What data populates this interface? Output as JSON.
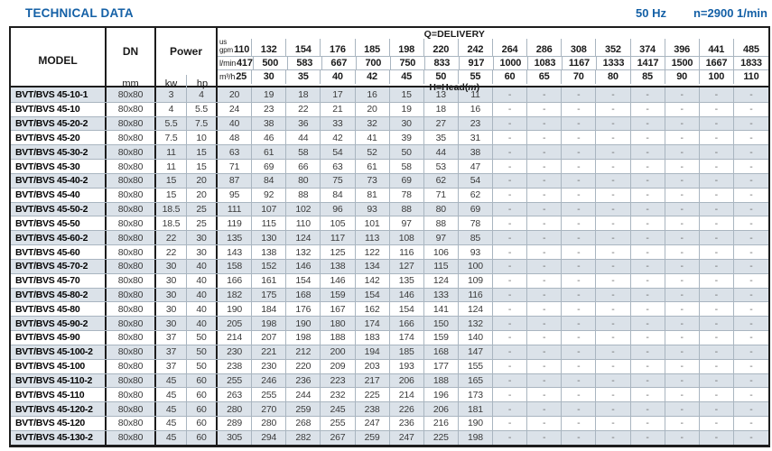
{
  "title": "TECHNICAL DATA",
  "top_right": {
    "frequency": "50 Hz",
    "speed": "n=2900 1/min"
  },
  "colors": {
    "accent": "#1460a6",
    "stripe": "#dbe2e9",
    "border": "#1d1d1d",
    "grid": "#a9b5c0"
  },
  "table": {
    "col_headers": {
      "model": "MODEL",
      "dn": "DN",
      "dn_unit": "mm",
      "power": "Power",
      "kw": "kw",
      "hp": "hp",
      "delivery_label": "Q=DELIVERY",
      "head_label_pre": "H=Head(",
      "head_label_m": "m",
      "head_label_post": ")",
      "unit_gpm_top": "us",
      "unit_gpm_bottom": "gpm",
      "unit_lmin": "l/min",
      "unit_m3h": "m³/h",
      "us_gpm": [
        "110",
        "132",
        "154",
        "176",
        "185",
        "198",
        "220",
        "242",
        "264",
        "286",
        "308",
        "352",
        "374",
        "396",
        "441",
        "485"
      ],
      "l_min": [
        "417",
        "500",
        "583",
        "667",
        "700",
        "750",
        "833",
        "917",
        "1000",
        "1083",
        "1167",
        "1333",
        "1417",
        "1500",
        "1667",
        "1833"
      ],
      "m3_h": [
        "25",
        "30",
        "35",
        "40",
        "42",
        "45",
        "50",
        "55",
        "60",
        "65",
        "70",
        "80",
        "85",
        "90",
        "100",
        "110"
      ]
    },
    "rows": [
      {
        "model": "BVT/BVS 45-10-1",
        "dn": "80x80",
        "kw": "3",
        "hp": "4",
        "head": [
          "20",
          "19",
          "18",
          "17",
          "16",
          "15",
          "13",
          "11",
          "-",
          "-",
          "-",
          "-",
          "-",
          "-",
          "-",
          "-"
        ]
      },
      {
        "model": "BVT/BVS 45-10",
        "dn": "80x80",
        "kw": "4",
        "hp": "5.5",
        "head": [
          "24",
          "23",
          "22",
          "21",
          "20",
          "19",
          "18",
          "16",
          "-",
          "-",
          "-",
          "-",
          "-",
          "-",
          "-",
          "-"
        ]
      },
      {
        "model": "BVT/BVS 45-20-2",
        "dn": "80x80",
        "kw": "5.5",
        "hp": "7.5",
        "head": [
          "40",
          "38",
          "36",
          "33",
          "32",
          "30",
          "27",
          "23",
          "-",
          "-",
          "-",
          "-",
          "-",
          "-",
          "-",
          "-"
        ]
      },
      {
        "model": "BVT/BVS 45-20",
        "dn": "80x80",
        "kw": "7.5",
        "hp": "10",
        "head": [
          "48",
          "46",
          "44",
          "42",
          "41",
          "39",
          "35",
          "31",
          "-",
          "-",
          "-",
          "-",
          "-",
          "-",
          "-",
          "-"
        ]
      },
      {
        "model": "BVT/BVS 45-30-2",
        "dn": "80x80",
        "kw": "11",
        "hp": "15",
        "head": [
          "63",
          "61",
          "58",
          "54",
          "52",
          "50",
          "44",
          "38",
          "-",
          "-",
          "-",
          "-",
          "-",
          "-",
          "-",
          "-"
        ]
      },
      {
        "model": "BVT/BVS 45-30",
        "dn": "80x80",
        "kw": "11",
        "hp": "15",
        "head": [
          "71",
          "69",
          "66",
          "63",
          "61",
          "58",
          "53",
          "47",
          "-",
          "-",
          "-",
          "-",
          "-",
          "-",
          "-",
          "-"
        ]
      },
      {
        "model": "BVT/BVS 45-40-2",
        "dn": "80x80",
        "kw": "15",
        "hp": "20",
        "head": [
          "87",
          "84",
          "80",
          "75",
          "73",
          "69",
          "62",
          "54",
          "-",
          "-",
          "-",
          "-",
          "-",
          "-",
          "-",
          "-"
        ]
      },
      {
        "model": "BVT/BVS 45-40",
        "dn": "80x80",
        "kw": "15",
        "hp": "20",
        "head": [
          "95",
          "92",
          "88",
          "84",
          "81",
          "78",
          "71",
          "62",
          "-",
          "-",
          "-",
          "-",
          "-",
          "-",
          "-",
          "-"
        ]
      },
      {
        "model": "BVT/BVS 45-50-2",
        "dn": "80x80",
        "kw": "18.5",
        "hp": "25",
        "head": [
          "111",
          "107",
          "102",
          "96",
          "93",
          "88",
          "80",
          "69",
          "-",
          "-",
          "-",
          "-",
          "-",
          "-",
          "-",
          "-"
        ]
      },
      {
        "model": "BVT/BVS 45-50",
        "dn": "80x80",
        "kw": "18.5",
        "hp": "25",
        "head": [
          "119",
          "115",
          "110",
          "105",
          "101",
          "97",
          "88",
          "78",
          "-",
          "-",
          "-",
          "-",
          "-",
          "-",
          "-",
          "-"
        ]
      },
      {
        "model": "BVT/BVS 45-60-2",
        "dn": "80x80",
        "kw": "22",
        "hp": "30",
        "head": [
          "135",
          "130",
          "124",
          "117",
          "113",
          "108",
          "97",
          "85",
          "-",
          "-",
          "-",
          "-",
          "-",
          "-",
          "-",
          "-"
        ]
      },
      {
        "model": "BVT/BVS 45-60",
        "dn": "80x80",
        "kw": "22",
        "hp": "30",
        "head": [
          "143",
          "138",
          "132",
          "125",
          "122",
          "116",
          "106",
          "93",
          "-",
          "-",
          "-",
          "-",
          "-",
          "-",
          "-",
          "-"
        ]
      },
      {
        "model": "BVT/BVS 45-70-2",
        "dn": "80x80",
        "kw": "30",
        "hp": "40",
        "head": [
          "158",
          "152",
          "146",
          "138",
          "134",
          "127",
          "115",
          "100",
          "-",
          "-",
          "-",
          "-",
          "-",
          "-",
          "-",
          "-"
        ]
      },
      {
        "model": "BVT/BVS 45-70",
        "dn": "80x80",
        "kw": "30",
        "hp": "40",
        "head": [
          "166",
          "161",
          "154",
          "146",
          "142",
          "135",
          "124",
          "109",
          "-",
          "-",
          "-",
          "-",
          "-",
          "-",
          "-",
          "-"
        ]
      },
      {
        "model": "BVT/BVS 45-80-2",
        "dn": "80x80",
        "kw": "30",
        "hp": "40",
        "head": [
          "182",
          "175",
          "168",
          "159",
          "154",
          "146",
          "133",
          "116",
          "-",
          "-",
          "-",
          "-",
          "-",
          "-",
          "-",
          "-"
        ]
      },
      {
        "model": "BVT/BVS 45-80",
        "dn": "80x80",
        "kw": "30",
        "hp": "40",
        "head": [
          "190",
          "184",
          "176",
          "167",
          "162",
          "154",
          "141",
          "124",
          "-",
          "-",
          "-",
          "-",
          "-",
          "-",
          "-",
          "-"
        ]
      },
      {
        "model": "BVT/BVS 45-90-2",
        "dn": "80x80",
        "kw": "30",
        "hp": "40",
        "head": [
          "205",
          "198",
          "190",
          "180",
          "174",
          "166",
          "150",
          "132",
          "-",
          "-",
          "-",
          "-",
          "-",
          "-",
          "-",
          "-"
        ]
      },
      {
        "model": "BVT/BVS 45-90",
        "dn": "80x80",
        "kw": "37",
        "hp": "50",
        "head": [
          "214",
          "207",
          "198",
          "188",
          "183",
          "174",
          "159",
          "140",
          "-",
          "-",
          "-",
          "-",
          "-",
          "-",
          "-",
          "-"
        ]
      },
      {
        "model": "BVT/BVS 45-100-2",
        "dn": "80x80",
        "kw": "37",
        "hp": "50",
        "head": [
          "230",
          "221",
          "212",
          "200",
          "194",
          "185",
          "168",
          "147",
          "-",
          "-",
          "-",
          "-",
          "-",
          "-",
          "-",
          "-"
        ]
      },
      {
        "model": "BVT/BVS 45-100",
        "dn": "80x80",
        "kw": "37",
        "hp": "50",
        "head": [
          "238",
          "230",
          "220",
          "209",
          "203",
          "193",
          "177",
          "155",
          "-",
          "-",
          "-",
          "-",
          "-",
          "-",
          "-",
          "-"
        ]
      },
      {
        "model": "BVT/BVS 45-110-2",
        "dn": "80x80",
        "kw": "45",
        "hp": "60",
        "head": [
          "255",
          "246",
          "236",
          "223",
          "217",
          "206",
          "188",
          "165",
          "-",
          "-",
          "-",
          "-",
          "-",
          "-",
          "-",
          "-"
        ]
      },
      {
        "model": "BVT/BVS 45-110",
        "dn": "80x80",
        "kw": "45",
        "hp": "60",
        "head": [
          "263",
          "255",
          "244",
          "232",
          "225",
          "214",
          "196",
          "173",
          "-",
          "-",
          "-",
          "-",
          "-",
          "-",
          "-",
          "-"
        ]
      },
      {
        "model": "BVT/BVS 45-120-2",
        "dn": "80x80",
        "kw": "45",
        "hp": "60",
        "head": [
          "280",
          "270",
          "259",
          "245",
          "238",
          "226",
          "206",
          "181",
          "-",
          "-",
          "-",
          "-",
          "-",
          "-",
          "-",
          "-"
        ]
      },
      {
        "model": "BVT/BVS 45-120",
        "dn": "80x80",
        "kw": "45",
        "hp": "60",
        "head": [
          "289",
          "280",
          "268",
          "255",
          "247",
          "236",
          "216",
          "190",
          "-",
          "-",
          "-",
          "-",
          "-",
          "-",
          "-",
          "-"
        ]
      },
      {
        "model": "BVT/BVS 45-130-2",
        "dn": "80x80",
        "kw": "45",
        "hp": "60",
        "head": [
          "305",
          "294",
          "282",
          "267",
          "259",
          "247",
          "225",
          "198",
          "-",
          "-",
          "-",
          "-",
          "-",
          "-",
          "-",
          "-"
        ]
      }
    ]
  }
}
